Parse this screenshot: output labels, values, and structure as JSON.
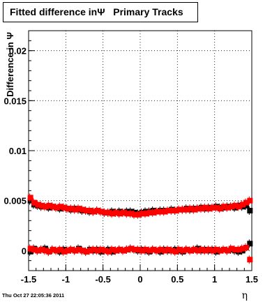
{
  "chart_data": {
    "type": "scatter",
    "title": "Fitted difference inΨ   Primary Tracks",
    "xlabel": "η",
    "ylabel": "Difference in Ψ",
    "xlim": [
      -1.5,
      1.5
    ],
    "ylim": [
      -0.002,
      0.022
    ],
    "x_ticks": [
      "-1.5",
      "-1",
      "-0.5",
      "0",
      "0.5",
      "1",
      "1.5"
    ],
    "y_ticks": [
      "0",
      "0.005",
      "0.01",
      "0.015",
      "0.02"
    ],
    "grid": true,
    "series": [
      {
        "color": "#000000",
        "x": [
          -1.475,
          -1.425,
          -1.375,
          -1.325,
          -1.275,
          -1.225,
          -1.175,
          -1.125,
          -1.075,
          -1.025,
          -0.975,
          -0.925,
          -0.875,
          -0.825,
          -0.775,
          -0.725,
          -0.675,
          -0.625,
          -0.575,
          -0.525,
          -0.475,
          -0.425,
          -0.375,
          -0.325,
          -0.275,
          -0.225,
          -0.175,
          -0.125,
          -0.075,
          -0.025,
          0.025,
          0.075,
          0.125,
          0.175,
          0.225,
          0.275,
          0.325,
          0.375,
          0.425,
          0.475,
          0.525,
          0.575,
          0.625,
          0.675,
          0.725,
          0.775,
          0.825,
          0.875,
          0.925,
          0.975,
          1.025,
          1.075,
          1.125,
          1.175,
          1.225,
          1.275,
          1.325,
          1.375,
          1.425,
          1.475
        ],
        "upper": [
          0.005,
          0.0046,
          0.0045,
          0.0044,
          0.0044,
          0.0043,
          0.0044,
          0.0043,
          0.0042,
          0.0043,
          0.0042,
          0.0041,
          0.0042,
          0.0041,
          0.004,
          0.004,
          0.0039,
          0.0039,
          0.004,
          0.0039,
          0.0038,
          0.0038,
          0.0039,
          0.0038,
          0.0039,
          0.0038,
          0.0039,
          0.0039,
          0.0038,
          0.0037,
          0.0038,
          0.0039,
          0.0039,
          0.004,
          0.0039,
          0.004,
          0.004,
          0.004,
          0.0041,
          0.004,
          0.0041,
          0.0041,
          0.0042,
          0.0041,
          0.0042,
          0.0042,
          0.0043,
          0.0042,
          0.0043,
          0.0043,
          0.0044,
          0.0043,
          0.0043,
          0.0044,
          0.0044,
          0.0043,
          0.0045,
          0.0044,
          0.0045,
          0.004
        ],
        "lower": [
          -0.0001,
          0.0002,
          0.0,
          0.0001,
          0.0002,
          -0.0001,
          0.0001,
          0.0,
          -0.0001,
          0.0001,
          0.0,
          0.0001,
          0.0,
          0.0002,
          0.0,
          -0.0001,
          0.0001,
          0.0,
          0.0001,
          -0.0001,
          0.0,
          0.0001,
          -0.0001,
          0.0,
          0.0001,
          0.0,
          0.0001,
          0.0002,
          0.0001,
          0.0,
          0.0001,
          0.0,
          -0.0001,
          0.0001,
          0.0,
          -0.0001,
          0.0001,
          0.0,
          0.0,
          0.0001,
          0.0,
          -0.0001,
          0.0001,
          0.0,
          0.0001,
          0.0002,
          0.0,
          0.0001,
          0.0,
          0.0001,
          -0.0001,
          0.0,
          0.0001,
          0.0,
          0.0001,
          0.0,
          -0.0001,
          0.0,
          0.0003,
          0.0007
        ]
      },
      {
        "color": "#ff0000",
        "x": [
          -1.475,
          -1.425,
          -1.375,
          -1.325,
          -1.275,
          -1.225,
          -1.175,
          -1.125,
          -1.075,
          -1.025,
          -0.975,
          -0.925,
          -0.875,
          -0.825,
          -0.775,
          -0.725,
          -0.675,
          -0.625,
          -0.575,
          -0.525,
          -0.475,
          -0.425,
          -0.375,
          -0.325,
          -0.275,
          -0.225,
          -0.175,
          -0.125,
          -0.075,
          -0.025,
          0.025,
          0.075,
          0.125,
          0.175,
          0.225,
          0.275,
          0.325,
          0.375,
          0.425,
          0.475,
          0.525,
          0.575,
          0.625,
          0.675,
          0.725,
          0.775,
          0.825,
          0.875,
          0.925,
          0.975,
          1.025,
          1.075,
          1.125,
          1.175,
          1.225,
          1.275,
          1.325,
          1.375,
          1.425,
          1.475
        ],
        "upper": [
          0.0053,
          0.0048,
          0.0046,
          0.0045,
          0.0044,
          0.0045,
          0.0044,
          0.0043,
          0.0044,
          0.0043,
          0.0042,
          0.0042,
          0.0041,
          0.0042,
          0.0041,
          0.004,
          0.004,
          0.0039,
          0.004,
          0.0039,
          0.0038,
          0.0038,
          0.0037,
          0.0038,
          0.0037,
          0.0038,
          0.0037,
          0.0037,
          0.0036,
          0.0036,
          0.0037,
          0.0037,
          0.0038,
          0.0038,
          0.0039,
          0.0039,
          0.0039,
          0.004,
          0.004,
          0.004,
          0.0041,
          0.0041,
          0.0041,
          0.0042,
          0.0041,
          0.0042,
          0.0042,
          0.0043,
          0.0042,
          0.0043,
          0.0043,
          0.0042,
          0.0044,
          0.0043,
          0.0044,
          0.0045,
          0.0044,
          0.0046,
          0.0048,
          0.005
        ],
        "lower": [
          0.0002,
          0.0001,
          0.0,
          0.0001,
          0.0,
          -0.0001,
          0.0001,
          0.0,
          0.0001,
          -0.0001,
          0.0,
          0.0001,
          0.0,
          0.0001,
          0.0,
          -0.0001,
          0.0,
          0.0001,
          0.0,
          0.0001,
          0.0,
          -0.0001,
          0.0001,
          0.0,
          0.0001,
          0.0,
          0.0001,
          0.0002,
          0.0001,
          0.0001,
          0.0,
          0.0001,
          0.0,
          0.0001,
          0.0,
          0.0001,
          0.0,
          0.0001,
          0.0,
          -0.0001,
          0.0001,
          0.0,
          0.0001,
          0.0,
          0.0001,
          0.0,
          0.0001,
          0.0,
          0.0001,
          0.0,
          0.0001,
          0.0,
          0.0001,
          0.0,
          0.0002,
          0.0001,
          0.0001,
          0.0002,
          0.0003,
          -0.0009
        ]
      }
    ]
  },
  "footer": {
    "timestamp": "Thu Oct 27 22:05:36 2011"
  }
}
